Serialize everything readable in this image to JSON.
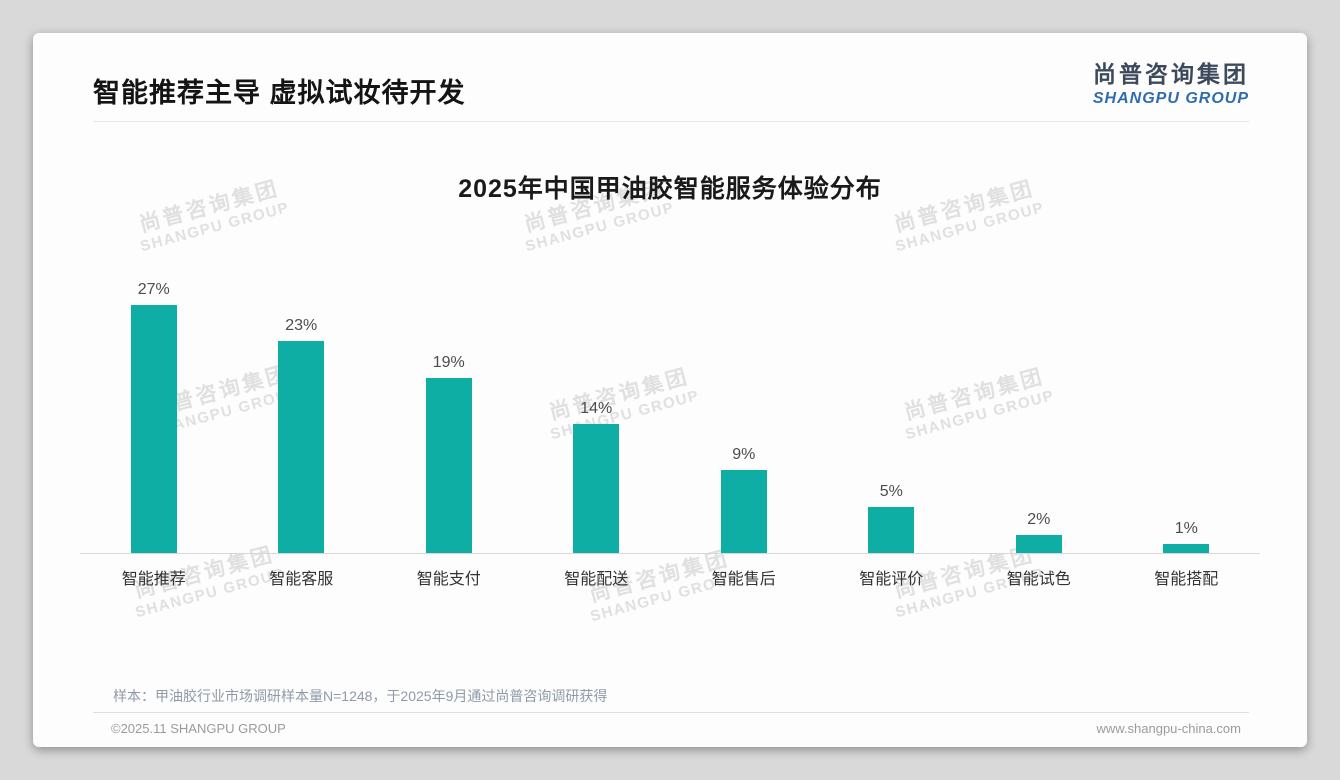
{
  "page": {
    "header": {
      "title": "智能推荐主导 虚拟试妆待开发",
      "logo": {
        "cn": "尚普咨询集团",
        "en": "SHANGPU GROUP"
      }
    },
    "watermark": {
      "cn": "尚普咨询集团",
      "en": "SHANGPU GROUP"
    },
    "note": "样本：甲油胶行业市场调研样本量N=1248，于2025年9月通过尚普咨询调研获得",
    "footer": {
      "copyright": "©2025.11 SHANGPU GROUP",
      "website": "www.shangpu-china.com"
    }
  },
  "chart_data": {
    "type": "bar",
    "title": "2025年中国甲油胶智能服务体验分布",
    "categories": [
      "智能推荐",
      "智能客服",
      "智能支付",
      "智能配送",
      "智能售后",
      "智能评价",
      "智能试色",
      "智能搭配"
    ],
    "values": [
      27,
      23,
      19,
      14,
      9,
      5,
      2,
      1
    ],
    "unit": "%",
    "value_labels": [
      "27%",
      "23%",
      "19%",
      "14%",
      "9%",
      "5%",
      "2%",
      "1%"
    ],
    "bar_color": "#0EAEA5",
    "xlabel": "",
    "ylabel": "",
    "ylim": [
      0,
      30
    ],
    "grid": false,
    "legend": null
  }
}
